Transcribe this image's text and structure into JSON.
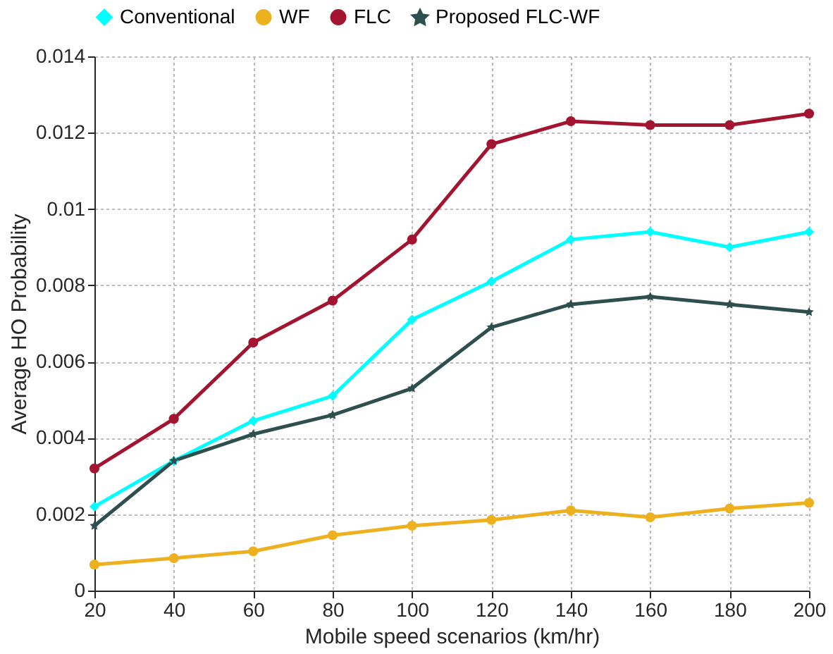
{
  "chart_data": {
    "type": "line",
    "xlabel": "Mobile speed scenarios (km/hr)",
    "ylabel": "Average HO Probability",
    "x": [
      20,
      40,
      60,
      80,
      100,
      120,
      140,
      160,
      180,
      200
    ],
    "series": [
      {
        "name": "Conventional",
        "color": "#00ffff",
        "marker": "diamond",
        "values": [
          0.0022,
          0.0034,
          0.00445,
          0.0051,
          0.0071,
          0.0081,
          0.0092,
          0.0094,
          0.009,
          0.0094
        ]
      },
      {
        "name": "WF",
        "color": "#edb120",
        "marker": "circle",
        "values": [
          0.00068,
          0.00085,
          0.00103,
          0.00145,
          0.0017,
          0.00185,
          0.0021,
          0.00192,
          0.00215,
          0.0023
        ]
      },
      {
        "name": "FLC",
        "color": "#a2142f",
        "marker": "circle",
        "values": [
          0.0032,
          0.0045,
          0.0065,
          0.0076,
          0.0092,
          0.0117,
          0.0123,
          0.0122,
          0.0122,
          0.0125
        ]
      },
      {
        "name": "Proposed FLC-WF",
        "color": "#2f4f4f",
        "marker": "star",
        "values": [
          0.0017,
          0.0034,
          0.0041,
          0.0046,
          0.0053,
          0.0069,
          0.0075,
          0.0077,
          0.0075,
          0.0073
        ]
      }
    ],
    "xlim": [
      20,
      200
    ],
    "xticks": [
      20,
      40,
      60,
      80,
      100,
      120,
      140,
      160,
      180,
      200
    ],
    "ylim": [
      0,
      0.014
    ],
    "yticks": [
      0,
      0.002,
      0.004,
      0.006,
      0.008,
      0.01,
      0.012,
      0.014
    ],
    "grid": true,
    "legend": "top",
    "line_style": "solid"
  }
}
